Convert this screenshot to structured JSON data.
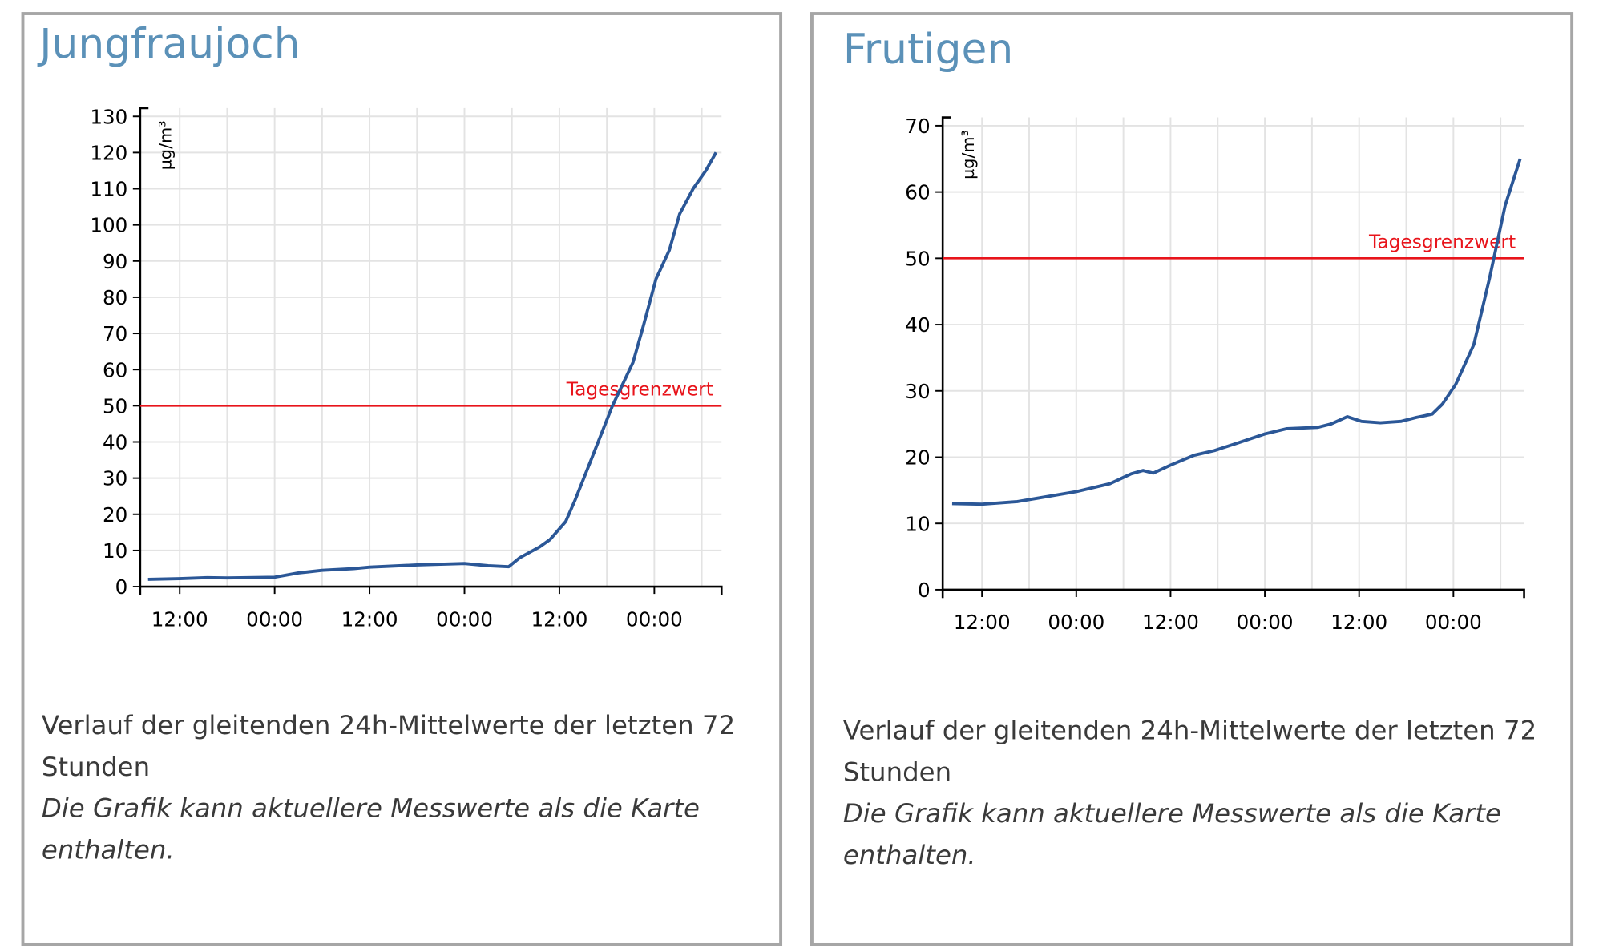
{
  "chart_data": [
    {
      "type": "line",
      "title": "Jungfraujoch",
      "y_label": "µg/m³",
      "color": "#2b5797",
      "x": [
        1,
        5,
        8.5,
        11,
        17,
        20,
        23,
        27,
        29,
        35,
        41,
        44,
        46.6,
        48,
        50.5,
        51.8,
        53.8,
        55,
        57,
        59.7,
        62.3,
        63.6,
        65.2,
        66.9,
        68.2,
        69.9,
        71.5,
        72.8
      ],
      "values": [
        2,
        2.2,
        2.5,
        2.4,
        2.6,
        3.8,
        4.5,
        5,
        5.4,
        6,
        6.4,
        5.8,
        5.5,
        8,
        11,
        13,
        18,
        24,
        35,
        50,
        62,
        72,
        85,
        93,
        103,
        110,
        115,
        120
      ],
      "xlim": [
        0,
        73.5
      ],
      "xticks": [
        {
          "value": 5,
          "label": "12:00"
        },
        {
          "value": 11,
          "label": null
        },
        {
          "value": 17,
          "label": "00:00"
        },
        {
          "value": 23,
          "label": null
        },
        {
          "value": 29,
          "label": "12:00"
        },
        {
          "value": 35,
          "label": null
        },
        {
          "value": 41,
          "label": "00:00"
        },
        {
          "value": 47,
          "label": null
        },
        {
          "value": 53,
          "label": "12:00"
        },
        {
          "value": 59,
          "label": null
        },
        {
          "value": 65,
          "label": "00:00"
        },
        {
          "value": 71,
          "label": null
        }
      ],
      "ylim": [
        0,
        130
      ],
      "yticks": [
        0,
        10,
        20,
        30,
        40,
        50,
        60,
        70,
        80,
        90,
        100,
        110,
        120,
        130
      ],
      "grid": true,
      "threshold": {
        "value": 50,
        "label": "Tagesgrenzwert",
        "color": "#e8141b"
      }
    },
    {
      "type": "line",
      "title": "Frutigen",
      "y_label": "µg/m³",
      "color": "#2b5797",
      "x": [
        1.2,
        5,
        9.5,
        12,
        17,
        21.3,
        24,
        25.5,
        26.8,
        29,
        32,
        34.6,
        37.2,
        41,
        43.8,
        47.7,
        49.4,
        51.5,
        53.3,
        55.7,
        58.3,
        60.3,
        62.3,
        63.6,
        65.3,
        67.6,
        69.6,
        71.6,
        73.5
      ],
      "values": [
        13,
        12.9,
        13.3,
        13.8,
        14.8,
        16,
        17.5,
        18,
        17.6,
        18.8,
        20.3,
        21,
        22,
        23.5,
        24.3,
        24.5,
        25,
        26.1,
        25.4,
        25.2,
        25.4,
        26,
        26.5,
        28,
        31,
        37,
        47,
        58,
        65
      ],
      "xlim": [
        0,
        74
      ],
      "xticks": [
        {
          "value": 5,
          "label": "12:00"
        },
        {
          "value": 11,
          "label": null
        },
        {
          "value": 17,
          "label": "00:00"
        },
        {
          "value": 23,
          "label": null
        },
        {
          "value": 29,
          "label": "12:00"
        },
        {
          "value": 35,
          "label": null
        },
        {
          "value": 41,
          "label": "00:00"
        },
        {
          "value": 47,
          "label": null
        },
        {
          "value": 53,
          "label": "12:00"
        },
        {
          "value": 59,
          "label": null
        },
        {
          "value": 65,
          "label": "00:00"
        },
        {
          "value": 71,
          "label": null
        }
      ],
      "ylim": [
        0,
        70
      ],
      "yticks": [
        0,
        10,
        20,
        30,
        40,
        50,
        60,
        70
      ],
      "grid": true,
      "threshold": {
        "value": 50,
        "label": "Tagesgrenzwert",
        "color": "#e8141b"
      }
    }
  ],
  "captions": [
    {
      "text": [
        "Verlauf der gleitenden 24h-Mittelwerte der letzten 72",
        "Stunden"
      ],
      "note": [
        "Die Grafik kann aktuellere Messwerte als die Karte",
        "enthalten."
      ]
    },
    {
      "text": [
        "Verlauf der gleitenden 24h-Mittelwerte der letzten 72",
        "Stunden"
      ],
      "note": [
        "Die Grafik kann aktuellere Messwerte als die Karte",
        "enthalten."
      ]
    }
  ]
}
